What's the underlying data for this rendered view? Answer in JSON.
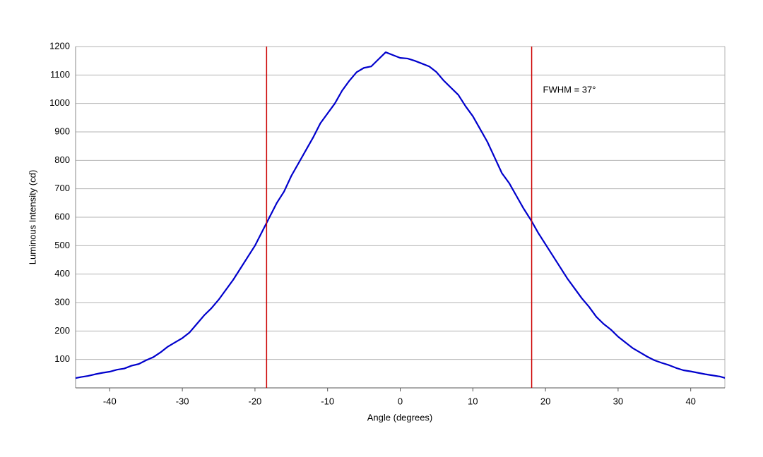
{
  "chart_data": {
    "type": "line",
    "x_label": "Angle (degrees)",
    "y_label": "Luminous Intensity (cd)",
    "annotation": "FWHM = 37°",
    "x": [
      -45,
      -44,
      -43,
      -42,
      -41,
      -40,
      -39,
      -38,
      -37,
      -36,
      -35,
      -34,
      -33,
      -32,
      -31,
      -30,
      -29,
      -28,
      -27,
      -26,
      -25,
      -24,
      -23,
      -22,
      -21,
      -20,
      -19,
      -18,
      -17,
      -16,
      -15,
      -14,
      -13,
      -12,
      -11,
      -10,
      -9,
      -8,
      -7,
      -6,
      -5,
      -4,
      -3,
      -2,
      -1,
      0,
      1,
      2,
      3,
      4,
      5,
      6,
      7,
      8,
      9,
      10,
      11,
      12,
      13,
      14,
      15,
      16,
      17,
      18,
      19,
      20,
      21,
      22,
      23,
      24,
      25,
      26,
      27,
      28,
      29,
      30,
      31,
      32,
      33,
      34,
      35,
      36,
      37,
      38,
      39,
      40,
      41,
      42,
      43,
      44,
      45
    ],
    "series": [
      {
        "color": "#0000cc",
        "values": [
          33,
          38,
          42,
          48,
          53,
          57,
          64,
          68,
          78,
          84,
          97,
          108,
          125,
          145,
          160,
          175,
          195,
          225,
          255,
          280,
          310,
          345,
          380,
          420,
          460,
          500,
          550,
          600,
          650,
          690,
          745,
          790,
          835,
          880,
          930,
          965,
          1000,
          1045,
          1080,
          1110,
          1125,
          1130,
          1155,
          1180,
          1170,
          1160,
          1158,
          1150,
          1140,
          1130,
          1110,
          1080,
          1055,
          1030,
          990,
          955,
          910,
          865,
          810,
          755,
          720,
          675,
          630,
          590,
          545,
          505,
          465,
          425,
          385,
          350,
          315,
          285,
          250,
          225,
          205,
          180,
          160,
          140,
          125,
          110,
          97,
          88,
          80,
          70,
          62,
          58,
          53,
          48,
          44,
          40,
          33
        ]
      }
    ],
    "markers": [
      {
        "x": -18.4,
        "color": "#cc0000"
      },
      {
        "x": 18.1,
        "color": "#cc0000"
      }
    ],
    "xlim": [
      -44.7,
      44.7
    ],
    "ylim": [
      0,
      1200
    ],
    "xticks": [
      -40,
      -30,
      -20,
      -10,
      0,
      10,
      20,
      30,
      40
    ],
    "yticks": [
      100,
      200,
      300,
      400,
      500,
      600,
      700,
      800,
      900,
      1000,
      1100,
      1200
    ],
    "grid": true
  }
}
